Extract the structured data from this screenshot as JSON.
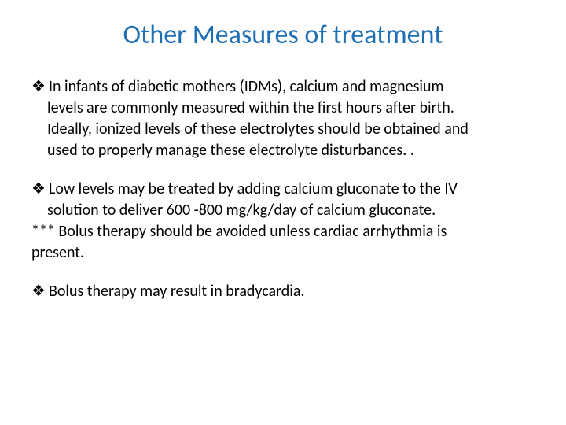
{
  "title": {
    "text": "Other Measures of treatment",
    "color": "#1f6fb4",
    "fontsize": 34
  },
  "body": {
    "color": "#000000",
    "fontsize": 20,
    "bullet_glyph": "❖",
    "bullet_color": "#000000"
  },
  "bullets": [
    {
      "lines": [
        "In infants of diabetic mothers (IDMs), calcium and magnesium",
        "levels are commonly measured within the first hours after birth.",
        "Ideally, ionized levels of these electrolytes should be obtained and",
        "used to properly manage these electrolyte disturbances. ."
      ]
    },
    {
      "lines": [
        "Low levels may be treated by adding calcium gluconate to the IV",
        "solution to deliver 600 -800 mg/kg/day of calcium gluconate."
      ],
      "after_note": [
        "*** Bolus therapy should be avoided unless cardiac arrhythmia is",
        "present."
      ]
    },
    {
      "lines": [
        "Bolus therapy may result in bradycardia."
      ]
    }
  ]
}
